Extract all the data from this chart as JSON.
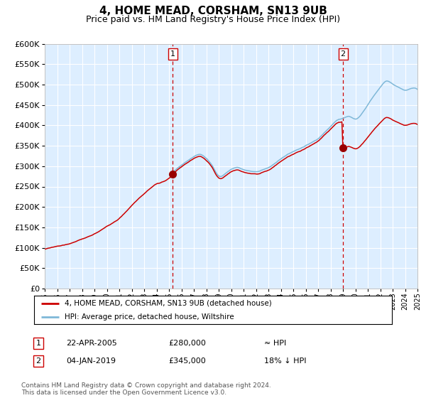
{
  "title": "4, HOME MEAD, CORSHAM, SN13 9UB",
  "subtitle": "Price paid vs. HM Land Registry's House Price Index (HPI)",
  "legend_line1": "4, HOME MEAD, CORSHAM, SN13 9UB (detached house)",
  "legend_line2": "HPI: Average price, detached house, Wiltshire",
  "sale1_date": "22-APR-2005",
  "sale1_price": "£280,000",
  "sale1_rel": "≈ HPI",
  "sale2_date": "04-JAN-2019",
  "sale2_price": "£345,000",
  "sale2_rel": "18% ↓ HPI",
  "footnote": "Contains HM Land Registry data © Crown copyright and database right 2024.\nThis data is licensed under the Open Government Licence v3.0.",
  "hpi_line_color": "#7fb8d8",
  "price_line_color": "#cc0000",
  "sale_marker_color": "#990000",
  "vline_color": "#cc0000",
  "plot_bg": "#ddeeff",
  "grid_color": "#ffffff",
  "ylim": [
    0,
    600000
  ],
  "yticks": [
    0,
    50000,
    100000,
    150000,
    200000,
    250000,
    300000,
    350000,
    400000,
    450000,
    500000,
    550000,
    600000
  ],
  "sale1_x": 2005.31,
  "sale1_y": 280000,
  "sale2_x": 2019.01,
  "sale2_y": 345000,
  "xmin": 1995,
  "xmax": 2025
}
